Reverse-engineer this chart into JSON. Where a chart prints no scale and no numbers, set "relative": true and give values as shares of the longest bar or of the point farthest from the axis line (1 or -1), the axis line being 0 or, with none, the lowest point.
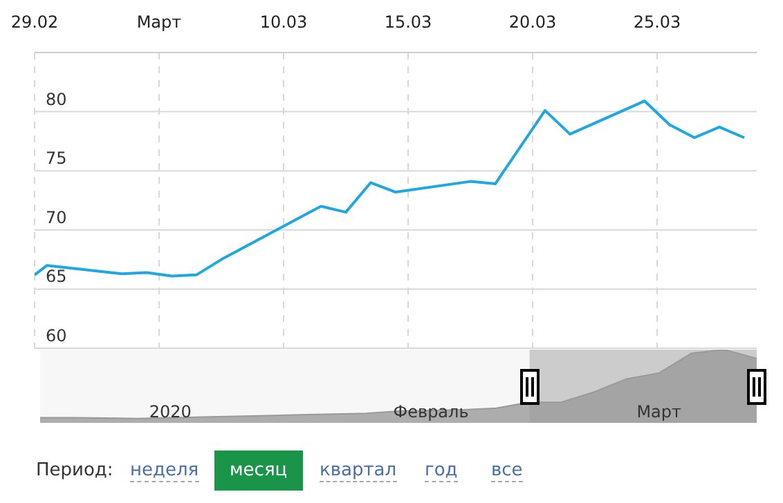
{
  "chart_data": [
    {
      "type": "line",
      "categories": [
        "29.02",
        null,
        null,
        null,
        null,
        null,
        null,
        null,
        null,
        null,
        "Март",
        null,
        null,
        null,
        null,
        null,
        null,
        null,
        null,
        null,
        "10.03",
        null,
        null,
        null,
        null,
        null,
        null,
        null,
        null,
        null,
        "15.03",
        null,
        null,
        null,
        null,
        null,
        null,
        null,
        null,
        null,
        "20.03",
        null,
        null,
        null,
        null,
        null,
        null,
        null,
        null,
        null,
        "25.03",
        null,
        null,
        null,
        null,
        null,
        null,
        null,
        null
      ],
      "series": [
        {
          "color": "#1ea7e1",
          "values": [
            66.2,
            67.0,
            null,
            null,
            null,
            null,
            null,
            66.3,
            null,
            66.4,
            null,
            66.1,
            null,
            66.2,
            null,
            67.5,
            null,
            null,
            null,
            null,
            null,
            null,
            null,
            72.0,
            null,
            71.5,
            null,
            74.0,
            null,
            73.2,
            null,
            null,
            null,
            null,
            null,
            74.1,
            null,
            73.9,
            null,
            null,
            null,
            80.1,
            null,
            78.1,
            null,
            null,
            null,
            null,
            null,
            80.9,
            null,
            78.9,
            null,
            77.8,
            null,
            78.7,
            null,
            77.8,
            null
          ]
        }
      ],
      "ylim": [
        60,
        85
      ],
      "yticks": [
        60,
        65,
        70,
        75,
        80
      ],
      "grid": true,
      "marker": "none",
      "line_style": "solid"
    },
    {
      "type": "area",
      "relative": true,
      "categories": [
        null,
        null,
        null,
        null,
        "2020",
        null,
        null,
        null,
        null,
        null,
        null,
        null,
        "Февраль",
        null,
        null,
        null,
        null,
        null,
        null,
        "Март",
        null,
        null,
        null
      ],
      "series": [
        {
          "color": "#9a9a9a",
          "values": [
            0.07,
            0.07,
            0.065,
            0.06,
            0.07,
            0.08,
            0.09,
            0.1,
            0.11,
            0.12,
            0.13,
            0.16,
            0.17,
            0.18,
            0.2,
            0.28,
            0.28,
            0.42,
            0.6,
            0.68,
            0.95,
            1,
            0.88
          ]
        }
      ],
      "tick_labels": "x"
    },
    {
      "type": "other",
      "title": "Период:",
      "categories": [
        "неделя",
        "месяц",
        "квартал",
        "год",
        "все"
      ],
      "colors": [
        null,
        "#1a9448",
        null,
        null,
        null
      ]
    }
  ]
}
